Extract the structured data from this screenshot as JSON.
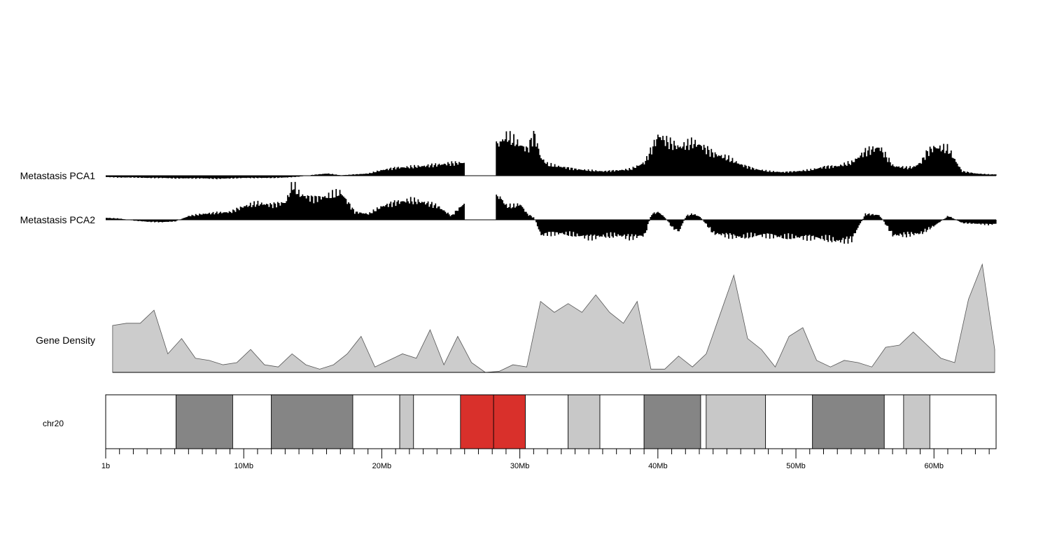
{
  "chart_data": {
    "type": "area",
    "x_unit": "Mb",
    "x_range": [
      0,
      64.5
    ],
    "colors": {
      "signal": "#000000",
      "density_fill": "#cccccc",
      "density_line": "#555555",
      "band_gneg": "#ffffff",
      "band_gpos_light": "#c8c8c8",
      "band_gpos_dark": "#858585",
      "band_acen": "#d9302b"
    },
    "tracks": [
      {
        "name": "Metastasis PCA1",
        "x": [
          0,
          1,
          2,
          3,
          4,
          5,
          6,
          7,
          8,
          9,
          10,
          11,
          12,
          13,
          14,
          15,
          16,
          17,
          18,
          19,
          20,
          21,
          22,
          23,
          24,
          25,
          26,
          28.5,
          29,
          29.5,
          30,
          30.5,
          31,
          31.5,
          32,
          33,
          34,
          35,
          36,
          37,
          38,
          39,
          39.5,
          40,
          40.5,
          41,
          41.5,
          42,
          42.5,
          43,
          44,
          45,
          46,
          47,
          48,
          49,
          50,
          51,
          52,
          53,
          54,
          55,
          56,
          57,
          58,
          58.5,
          59,
          59.5,
          60,
          61,
          62,
          63,
          64,
          64.5
        ],
        "values": [
          -0.03,
          -0.04,
          -0.04,
          -0.05,
          -0.05,
          -0.06,
          -0.06,
          -0.06,
          -0.07,
          -0.06,
          -0.05,
          -0.05,
          -0.05,
          -0.04,
          -0.02,
          0.02,
          0.05,
          0.01,
          0.03,
          0.05,
          0.13,
          0.18,
          0.2,
          0.22,
          0.25,
          0.28,
          0.3,
          0.75,
          0.9,
          0.8,
          0.7,
          0.6,
          0.95,
          0.4,
          0.25,
          0.2,
          0.15,
          0.12,
          0.1,
          0.12,
          0.15,
          0.3,
          0.6,
          0.92,
          0.8,
          0.72,
          0.65,
          0.7,
          0.75,
          0.7,
          0.5,
          0.4,
          0.25,
          0.15,
          0.1,
          0.08,
          0.1,
          0.13,
          0.2,
          0.22,
          0.3,
          0.55,
          0.65,
          0.22,
          0.18,
          0.2,
          0.3,
          0.55,
          0.65,
          0.6,
          0.1,
          0.05,
          0.03,
          0.03
        ],
        "gaps": [
          [
            26,
            28.2
          ]
        ],
        "ylim": [
          -0.1,
          1.0
        ]
      },
      {
        "name": "Metastasis PCA2",
        "x": [
          0,
          1,
          2,
          3,
          4,
          5,
          6,
          7,
          8,
          9,
          10,
          11,
          12,
          13,
          13.5,
          14,
          15,
          16,
          17,
          18,
          19,
          20,
          21,
          22,
          23,
          24,
          25,
          26,
          28.5,
          29,
          29.5,
          30,
          30.5,
          31,
          31.5,
          32,
          33,
          34,
          35,
          36,
          37,
          38,
          39,
          39.5,
          40,
          40.5,
          41,
          41.5,
          42,
          42.5,
          43,
          44,
          45,
          46,
          47,
          48,
          49,
          50,
          51,
          52,
          53,
          54,
          55,
          56,
          57,
          58,
          59,
          60,
          61,
          62,
          63,
          64,
          64.5
        ],
        "values": [
          0.05,
          0.03,
          -0.02,
          -0.05,
          -0.06,
          -0.04,
          0.1,
          0.15,
          0.18,
          0.2,
          0.35,
          0.42,
          0.38,
          0.45,
          0.9,
          0.65,
          0.55,
          0.6,
          0.7,
          0.2,
          0.15,
          0.35,
          0.45,
          0.5,
          0.45,
          0.35,
          0.1,
          0.45,
          0.6,
          0.35,
          0.35,
          0.4,
          0.15,
          0.05,
          -0.4,
          -0.35,
          -0.35,
          -0.4,
          -0.45,
          -0.42,
          -0.4,
          -0.45,
          -0.4,
          0.15,
          0.2,
          0.05,
          -0.2,
          -0.3,
          0.1,
          0.15,
          0.08,
          -0.35,
          -0.4,
          -0.45,
          -0.4,
          -0.4,
          -0.45,
          -0.45,
          -0.45,
          -0.48,
          -0.55,
          -0.5,
          0.15,
          0.12,
          -0.4,
          -0.38,
          -0.35,
          -0.15,
          0.1,
          -0.08,
          -0.1,
          -0.12,
          -0.1
        ],
        "gaps": [
          [
            26,
            28.2
          ]
        ],
        "ylim": [
          -0.6,
          0.9
        ]
      },
      {
        "name": "Gene Density",
        "x": [
          0.5,
          1.5,
          2.5,
          3.5,
          4.5,
          5.5,
          6.5,
          7.5,
          8.5,
          9.5,
          10.5,
          11.5,
          12.5,
          13.5,
          14.5,
          15.5,
          16.5,
          17.5,
          18.5,
          19.5,
          20.5,
          21.5,
          22.5,
          23.5,
          24.5,
          25.5,
          26.5,
          27.5,
          28.5,
          29.5,
          30.5,
          31.5,
          32.5,
          33.5,
          34.5,
          35.5,
          36.5,
          37.5,
          38.5,
          39.5,
          40.5,
          41.5,
          42.5,
          43.5,
          44.5,
          45.5,
          46.5,
          47.5,
          48.5,
          49.5,
          50.5,
          51.5,
          52.5,
          53.5,
          54.5,
          55.5,
          56.5,
          57.5,
          58.5,
          59.5,
          60.5,
          61.5,
          62.5,
          63.5,
          64.4
        ],
        "values": [
          43,
          45,
          45,
          57,
          17,
          31,
          13,
          11,
          7,
          9,
          21,
          7,
          5,
          17,
          7,
          3,
          7,
          17,
          33,
          5,
          11,
          17,
          13,
          39,
          7,
          33,
          9,
          0,
          1,
          7,
          5,
          65,
          55,
          63,
          55,
          71,
          55,
          45,
          65,
          3,
          3,
          15,
          5,
          17,
          53,
          89,
          31,
          21,
          5,
          33,
          41,
          11,
          5,
          11,
          9,
          5,
          23,
          25,
          37,
          25,
          13,
          9,
          67,
          99,
          21
        ],
        "ylim": [
          0,
          100
        ]
      }
    ],
    "ideogram": {
      "name": "chr20",
      "bands": [
        {
          "start": 0,
          "end": 5.1,
          "stain": "gneg"
        },
        {
          "start": 5.1,
          "end": 9.2,
          "stain": "gpos_dark"
        },
        {
          "start": 9.2,
          "end": 12.0,
          "stain": "gneg"
        },
        {
          "start": 12.0,
          "end": 17.9,
          "stain": "gpos_dark"
        },
        {
          "start": 17.9,
          "end": 21.3,
          "stain": "gneg"
        },
        {
          "start": 21.3,
          "end": 22.3,
          "stain": "gpos_light"
        },
        {
          "start": 22.3,
          "end": 25.7,
          "stain": "gneg"
        },
        {
          "start": 25.7,
          "end": 28.1,
          "stain": "acen"
        },
        {
          "start": 28.1,
          "end": 30.4,
          "stain": "acen"
        },
        {
          "start": 30.4,
          "end": 33.5,
          "stain": "gneg"
        },
        {
          "start": 33.5,
          "end": 35.8,
          "stain": "gpos_light"
        },
        {
          "start": 35.8,
          "end": 39.0,
          "stain": "gneg"
        },
        {
          "start": 39.0,
          "end": 43.1,
          "stain": "gpos_dark"
        },
        {
          "start": 43.1,
          "end": 43.5,
          "stain": "gneg"
        },
        {
          "start": 43.5,
          "end": 47.8,
          "stain": "gpos_light"
        },
        {
          "start": 47.8,
          "end": 51.2,
          "stain": "gneg"
        },
        {
          "start": 51.2,
          "end": 56.4,
          "stain": "gpos_dark"
        },
        {
          "start": 56.4,
          "end": 57.8,
          "stain": "gneg"
        },
        {
          "start": 57.8,
          "end": 59.7,
          "stain": "gpos_light"
        },
        {
          "start": 59.7,
          "end": 64.5,
          "stain": "gneg"
        }
      ]
    },
    "x_axis": {
      "major_ticks": [
        0,
        10,
        20,
        30,
        40,
        50,
        60
      ],
      "tick_labels": [
        "1b",
        "10Mb",
        "20Mb",
        "30Mb",
        "40Mb",
        "50Mb",
        "60Mb"
      ],
      "minor_tick_step": 1
    }
  }
}
